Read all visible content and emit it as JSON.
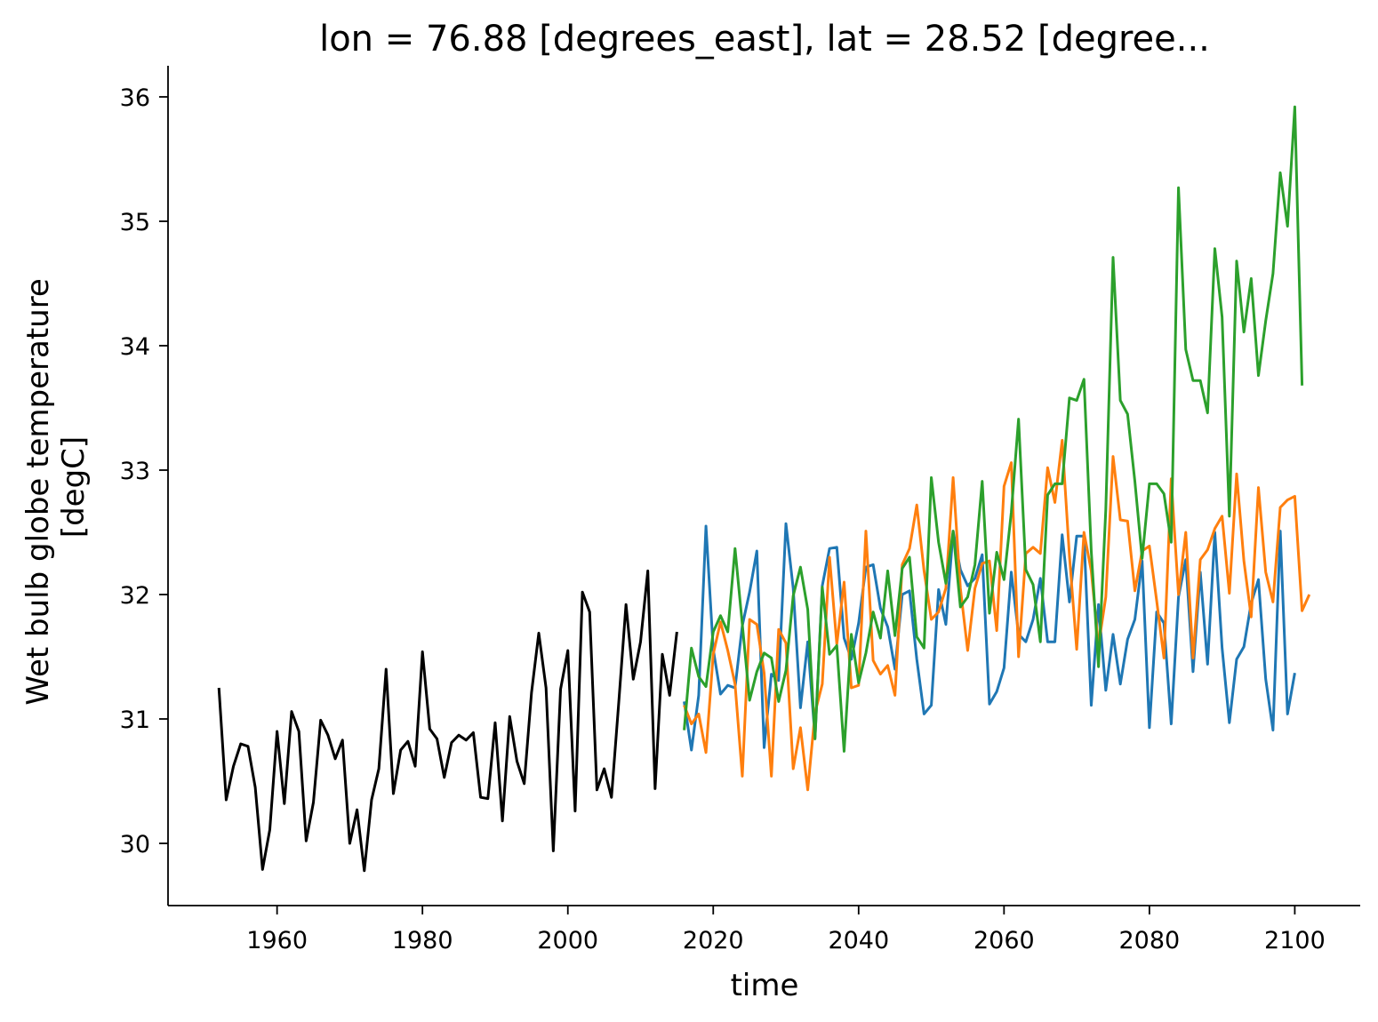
{
  "chart_data": {
    "type": "line",
    "title": "lon = 76.88 [degrees_east], lat = 28.52 [degree...",
    "xlabel": "time",
    "ylabel_line1": "Wet bulb globe temperature",
    "ylabel_line2": "[degC]",
    "xlim": [
      1945,
      2109
    ],
    "ylim": [
      29.5,
      36.25
    ],
    "xticks": [
      1960,
      1980,
      2000,
      2020,
      2040,
      2060,
      2080,
      2100
    ],
    "yticks": [
      30,
      31,
      32,
      33,
      34,
      35,
      36
    ],
    "grid": false,
    "series": [
      {
        "color": "#000000",
        "x_start": 1952,
        "values": [
          31.25,
          30.35,
          30.62,
          30.8,
          30.78,
          30.45,
          29.79,
          30.11,
          30.9,
          30.32,
          31.06,
          30.9,
          30.02,
          30.33,
          30.99,
          30.87,
          30.68,
          30.83,
          30.0,
          30.27,
          29.78,
          30.35,
          30.6,
          31.4,
          30.4,
          30.75,
          30.82,
          30.62,
          31.54,
          30.92,
          30.84,
          30.53,
          30.81,
          30.87,
          30.83,
          30.89,
          30.37,
          30.36,
          30.97,
          30.18,
          31.02,
          30.66,
          30.48,
          31.21,
          31.69,
          31.25,
          29.94,
          31.24,
          31.55,
          30.26,
          32.02,
          31.86,
          30.43,
          30.6,
          30.37,
          31.13,
          31.92,
          31.32,
          31.62,
          32.19,
          30.44,
          31.52,
          31.19,
          31.7
        ]
      },
      {
        "color": "#1f77b4",
        "x_start": 2016,
        "values": [
          31.14,
          30.75,
          31.19,
          32.55,
          31.56,
          31.2,
          31.27,
          31.25,
          31.75,
          32.02,
          32.35,
          30.77,
          31.36,
          31.31,
          32.57,
          32.05,
          31.09,
          31.62,
          30.85,
          32.07,
          32.37,
          32.38,
          31.65,
          31.48,
          31.77,
          32.22,
          32.24,
          31.89,
          31.74,
          31.4,
          32.0,
          32.03,
          31.48,
          31.04,
          31.11,
          32.04,
          31.76,
          32.51,
          32.2,
          32.07,
          32.13,
          32.32,
          31.12,
          31.22,
          31.41,
          32.18,
          31.68,
          31.62,
          31.8,
          32.13,
          31.62,
          31.62,
          32.48,
          31.94,
          32.47,
          32.47,
          31.11,
          31.92,
          31.23,
          31.68,
          31.28,
          31.64,
          31.8,
          32.27,
          30.93,
          31.86,
          31.77,
          30.96,
          31.98,
          32.28,
          31.38,
          32.18,
          31.44,
          32.5,
          31.57,
          30.97,
          31.48,
          31.58,
          31.93,
          32.12,
          31.32,
          30.91,
          32.51,
          31.04,
          31.37
        ]
      },
      {
        "color": "#ff7f0e",
        "x_start": 2016,
        "values": [
          31.11,
          30.96,
          31.04,
          30.73,
          31.52,
          31.78,
          31.55,
          31.28,
          30.54,
          31.8,
          31.76,
          31.37,
          30.54,
          31.72,
          31.61,
          30.6,
          30.93,
          30.43,
          31.05,
          31.28,
          32.3,
          31.6,
          32.1,
          31.25,
          31.27,
          32.51,
          31.47,
          31.36,
          31.43,
          31.19,
          32.24,
          32.37,
          32.72,
          32.19,
          31.8,
          31.86,
          32.05,
          32.94,
          32.05,
          31.55,
          32.05,
          32.25,
          32.27,
          31.71,
          32.87,
          33.06,
          31.5,
          32.33,
          32.38,
          32.33,
          33.02,
          32.74,
          33.24,
          32.31,
          31.56,
          32.5,
          32.19,
          31.59,
          31.98,
          33.11,
          32.6,
          32.59,
          32.03,
          32.35,
          32.39,
          31.95,
          31.49,
          32.93,
          32.0,
          32.5,
          31.49,
          32.28,
          32.36,
          32.53,
          32.63,
          32.01,
          32.97,
          32.27,
          31.82,
          32.86,
          32.18,
          31.94,
          32.7,
          32.76,
          32.79,
          31.87,
          32.0
        ]
      },
      {
        "color": "#2ca02c",
        "x_start": 2016,
        "values": [
          30.91,
          31.57,
          31.34,
          31.26,
          31.7,
          31.83,
          31.7,
          32.37,
          31.76,
          31.15,
          31.38,
          31.53,
          31.49,
          31.14,
          31.39,
          31.99,
          32.22,
          31.88,
          30.84,
          32.06,
          31.52,
          31.59,
          30.74,
          31.68,
          31.29,
          31.53,
          31.86,
          31.65,
          32.19,
          31.67,
          32.21,
          32.3,
          31.66,
          31.57,
          32.94,
          32.42,
          32.09,
          32.51,
          31.9,
          31.98,
          32.24,
          32.91,
          31.85,
          32.34,
          32.12,
          32.66,
          33.41,
          32.2,
          32.08,
          31.62,
          32.8,
          32.89,
          32.89,
          33.58,
          33.56,
          33.73,
          32.35,
          31.42,
          32.68,
          34.71,
          33.56,
          33.45,
          32.91,
          32.29,
          32.89,
          32.89,
          32.81,
          32.42,
          35.27,
          33.97,
          33.72,
          33.72,
          33.46,
          34.78,
          34.23,
          32.63,
          34.68,
          34.11,
          34.54,
          33.76,
          34.2,
          34.58,
          35.39,
          34.96,
          35.92,
          33.68
        ]
      }
    ]
  }
}
